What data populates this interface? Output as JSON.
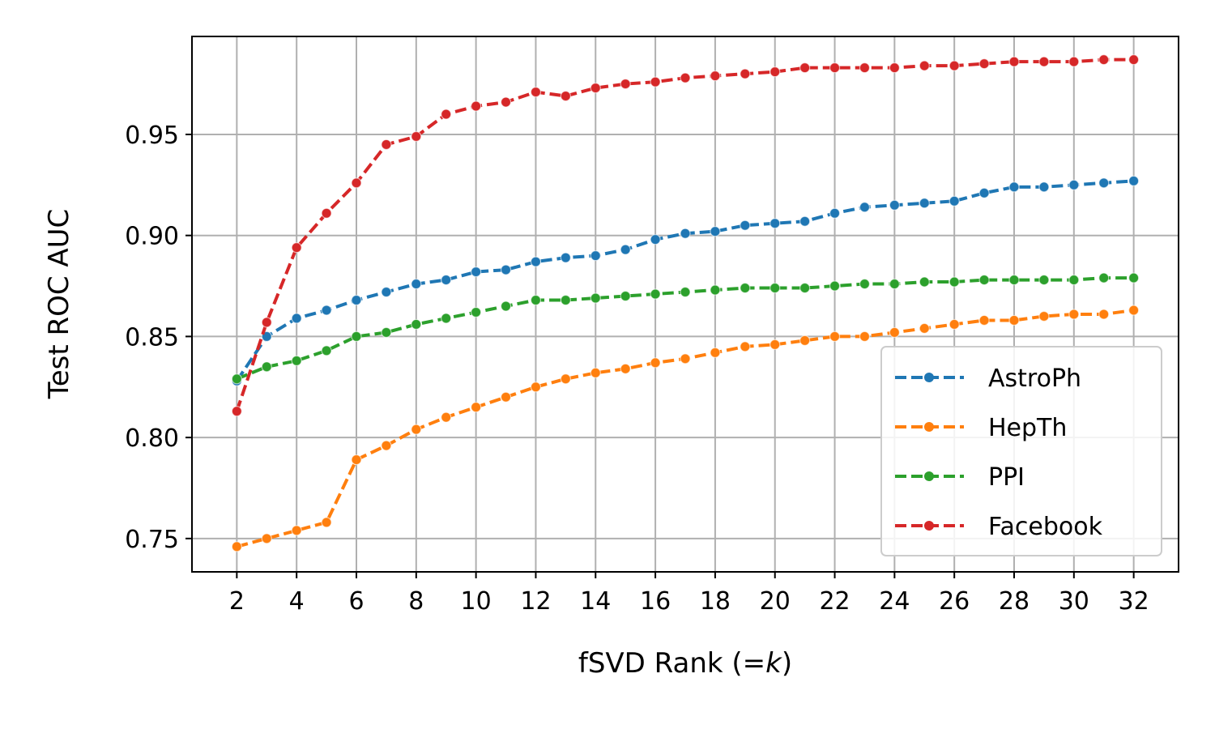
{
  "chart_data": {
    "type": "line",
    "xlabel_main": "fSVD Rank (=",
    "xlabel_k": "k",
    "xlabel_close": ")",
    "ylabel": "Test ROC AUC",
    "xlim": [
      0.5,
      33.5
    ],
    "ylim": [
      0.7335,
      0.9985
    ],
    "x_ticks": [
      2,
      4,
      6,
      8,
      10,
      12,
      14,
      16,
      18,
      20,
      22,
      24,
      26,
      28,
      30,
      32
    ],
    "y_ticks": [
      0.75,
      0.8,
      0.85,
      0.9,
      0.95
    ],
    "y_tick_labels": [
      "0.75",
      "0.80",
      "0.85",
      "0.90",
      "0.95"
    ],
    "grid": true,
    "legend_position": "lower-right",
    "x": [
      2,
      3,
      4,
      5,
      6,
      7,
      8,
      9,
      10,
      11,
      12,
      13,
      14,
      15,
      16,
      17,
      18,
      19,
      20,
      21,
      22,
      23,
      24,
      25,
      26,
      27,
      28,
      29,
      30,
      31,
      32
    ],
    "series": [
      {
        "name": "AstroPh",
        "color": "#1f77b4",
        "values": [
          0.828,
          0.85,
          0.859,
          0.863,
          0.868,
          0.872,
          0.876,
          0.878,
          0.882,
          0.883,
          0.887,
          0.889,
          0.89,
          0.893,
          0.898,
          0.901,
          0.902,
          0.905,
          0.906,
          0.907,
          0.911,
          0.914,
          0.915,
          0.916,
          0.917,
          0.921,
          0.924,
          0.924,
          0.925,
          0.926,
          0.927
        ]
      },
      {
        "name": "HepTh",
        "color": "#ff7f0e",
        "values": [
          0.746,
          0.75,
          0.754,
          0.758,
          0.789,
          0.796,
          0.804,
          0.81,
          0.815,
          0.82,
          0.825,
          0.829,
          0.832,
          0.834,
          0.837,
          0.839,
          0.842,
          0.845,
          0.846,
          0.848,
          0.85,
          0.85,
          0.852,
          0.854,
          0.856,
          0.858,
          0.858,
          0.86,
          0.861,
          0.861,
          0.863
        ]
      },
      {
        "name": "PPI",
        "color": "#2ca02c",
        "values": [
          0.829,
          0.835,
          0.838,
          0.843,
          0.85,
          0.852,
          0.856,
          0.859,
          0.862,
          0.865,
          0.868,
          0.868,
          0.869,
          0.87,
          0.871,
          0.872,
          0.873,
          0.874,
          0.874,
          0.874,
          0.875,
          0.876,
          0.876,
          0.877,
          0.877,
          0.878,
          0.878,
          0.878,
          0.878,
          0.879,
          0.879
        ]
      },
      {
        "name": "Facebook",
        "color": "#d62728",
        "values": [
          0.813,
          0.857,
          0.894,
          0.911,
          0.926,
          0.945,
          0.949,
          0.96,
          0.964,
          0.966,
          0.971,
          0.969,
          0.973,
          0.975,
          0.976,
          0.978,
          0.979,
          0.98,
          0.981,
          0.983,
          0.983,
          0.983,
          0.983,
          0.984,
          0.984,
          0.985,
          0.986,
          0.986,
          0.986,
          0.987,
          0.987
        ]
      }
    ]
  }
}
